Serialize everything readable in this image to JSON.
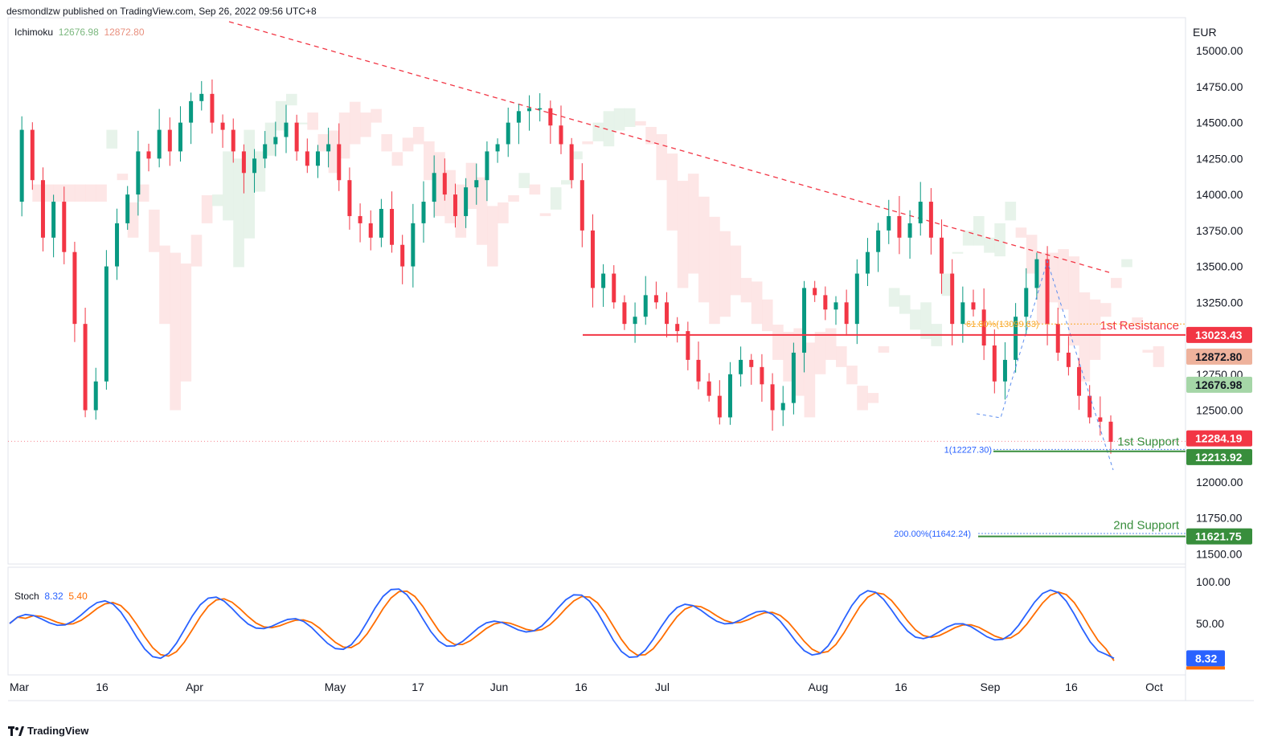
{
  "header": {
    "published": "desmondlzw published on TradingView.com, Sep 26, 2022 09:56 UTC+8"
  },
  "ichimoku": {
    "name": "Ichimoku",
    "val1": "12676.98",
    "val2": "12872.80"
  },
  "stoch": {
    "name": "Stoch",
    "k": "8.32",
    "d": "5.40"
  },
  "currency": "EUR",
  "footer": {
    "brand": "TradingView",
    "logo_icon": "tradingview-logo-icon"
  },
  "colors": {
    "up": "#089981",
    "down": "#f23645",
    "resistance": "#f23645",
    "support": "#388e3c",
    "cloud_red": "#fde2e2",
    "cloud_green": "#e3f1e6",
    "stoch_k": "#2962ff",
    "stoch_d": "#ff6d00",
    "trendline": "#f23645",
    "fib": "#f9a825"
  },
  "annotations": {
    "resistance1": {
      "label": "1st Resistance",
      "price": "13023.43"
    },
    "support1": {
      "label": "1st Support",
      "price": "12213.92",
      "fib_label": "1(12227.30)"
    },
    "support2": {
      "label": "2nd Support",
      "price": "11621.75",
      "fib_label": "200.00%(11642.24)"
    },
    "fib618": {
      "label": "61.80%(13099.63)"
    },
    "last_close": "12284.19",
    "ichimoku_badge_1": "12872.80",
    "ichimoku_badge_2": "12676.98",
    "stoch_badge": "8.32"
  },
  "chart_data": {
    "type": "candlestick",
    "title": "",
    "currency": "EUR",
    "price_axis": {
      "min": 11500,
      "max": 15000,
      "step": 250,
      "ticks": [
        "15000.00",
        "14750.00",
        "14500.00",
        "14250.00",
        "14000.00",
        "13750.00",
        "13500.00",
        "13250.00",
        "12750.00",
        "12500.00",
        "12000.00",
        "11750.00",
        "11500.00"
      ]
    },
    "time_axis": {
      "labels": [
        "Mar",
        "16",
        "Apr",
        "May",
        "17",
        "Jun",
        "16",
        "Jul",
        "Aug",
        "16",
        "Sep",
        "16",
        "Oct"
      ]
    },
    "stoch_axis": {
      "ticks": [
        "100.00",
        "50.00"
      ],
      "min": 0,
      "max": 100
    },
    "price_path": [
      13950,
      14450,
      14100,
      13700,
      13950,
      13600,
      13100,
      12500,
      12700,
      13500,
      13800,
      14000,
      14300,
      14250,
      14450,
      14300,
      14500,
      14650,
      14700,
      14500,
      14450,
      14300,
      14150,
      14250,
      14350,
      14400,
      14500,
      14300,
      14200,
      14300,
      14350,
      14100,
      13850,
      13800,
      13700,
      13900,
      13650,
      13500,
      13800,
      13950,
      14150,
      14000,
      13850,
      14050,
      14100,
      14300,
      14350,
      14500,
      14580,
      14600,
      14600,
      14480,
      14350,
      14100,
      13750,
      13350,
      13450,
      13250,
      13100,
      13150,
      13300,
      13250,
      13100,
      13050,
      12850,
      12700,
      12600,
      12450,
      12750,
      12850,
      12800,
      12680,
      12500,
      12550,
      12900,
      13350,
      13300,
      13200,
      13250,
      13100,
      13450,
      13600,
      13750,
      13850,
      13700,
      13800,
      13950,
      13700,
      13450,
      13100,
      13250,
      13200,
      12950,
      12700,
      12850,
      13150,
      13350,
      13550,
      13100,
      12900,
      12800,
      12600,
      12450,
      12420,
      12280
    ],
    "ichimoku_last": {
      "span_a": 12676.98,
      "span_b": 12872.8
    },
    "stoch_last": {
      "k": 8.32,
      "d": 5.4
    },
    "levels": [
      {
        "name": "1st Resistance",
        "value": 13023.43
      },
      {
        "name": "1st Support",
        "value": 12213.92
      },
      {
        "name": "2nd Support",
        "value": 11621.75
      },
      {
        "name": "61.80%(13099.63)",
        "value": 13099.63
      },
      {
        "name": "1(12227.30)",
        "value": 12227.3
      },
      {
        "name": "200.00%(11642.24)",
        "value": 11642.24
      },
      {
        "name": "last",
        "value": 12284.19
      }
    ]
  }
}
